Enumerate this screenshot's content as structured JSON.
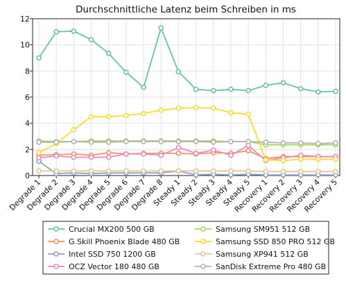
{
  "chart_data": {
    "type": "line",
    "title": "Durchschnittliche Latenz beim Schreiben in ms",
    "xlabel": "",
    "ylabel": "",
    "ylim": [
      0,
      12
    ],
    "yticks": [
      0,
      2,
      4,
      6,
      8,
      10,
      12
    ],
    "grid": true,
    "legend_position": "bottom",
    "categories": [
      "Degrade 1",
      "Degrade 2",
      "Degrade 3",
      "Degrade 4",
      "Degrade 5",
      "Degrade 6",
      "Degrade 7",
      "Degrade 8",
      "Steady 1",
      "Steady 2",
      "Steady 3",
      "Steady 4",
      "Steady 5",
      "Recovery 1",
      "Recovery 2",
      "Recovery 3",
      "Recovery 4",
      "Recovery 5"
    ],
    "series": [
      {
        "name": "Crucial MX200 500 GB",
        "color": "#66c2a5",
        "values": [
          9.0,
          11.0,
          11.05,
          10.4,
          9.35,
          7.9,
          6.75,
          11.3,
          7.95,
          6.6,
          6.5,
          6.6,
          6.5,
          6.9,
          7.1,
          6.65,
          6.4,
          6.45
        ]
      },
      {
        "name": "G.Skill Phoenix Blade 480 GB",
        "color": "#fc8d62",
        "values": [
          1.55,
          1.6,
          1.65,
          1.55,
          1.75,
          1.65,
          1.7,
          1.7,
          1.7,
          1.65,
          1.75,
          1.7,
          1.9,
          1.3,
          1.45,
          1.45,
          1.45,
          1.45
        ]
      },
      {
        "name": "Intel SSD 750 1200 GB",
        "color": "#8da0cb",
        "values": [
          1.1,
          0.15,
          0.2,
          0.15,
          0.2,
          0.2,
          0.2,
          0.2,
          0.35,
          0.05,
          0.1,
          0.05,
          0.1,
          0.05,
          0.05,
          0.05,
          0.05,
          0.05
        ]
      },
      {
        "name": "OCZ Vector 180 480 GB",
        "color": "#e78ac3",
        "values": [
          1.35,
          1.5,
          1.4,
          1.4,
          1.4,
          1.65,
          1.65,
          1.55,
          2.15,
          1.7,
          1.95,
          1.55,
          2.3,
          1.15,
          1.35,
          1.55,
          1.45,
          1.45
        ]
      },
      {
        "name": "Samsung SM951 512 GB",
        "color": "#a6d854",
        "values": [
          2.65,
          2.6,
          2.6,
          2.65,
          2.65,
          2.65,
          2.65,
          2.65,
          2.65,
          2.65,
          2.65,
          2.6,
          2.6,
          2.35,
          2.35,
          2.35,
          2.35,
          2.35
        ]
      },
      {
        "name": "Samsung SSD 850 PRO 512 GB",
        "color": "#ffd92f",
        "values": [
          1.75,
          2.45,
          3.5,
          4.5,
          4.5,
          4.6,
          4.75,
          5.0,
          5.15,
          5.2,
          5.15,
          4.8,
          4.7,
          1.2,
          1.15,
          1.25,
          1.25,
          1.25
        ]
      },
      {
        "name": "Samsung XP941 512 GB",
        "color": "#e5c494",
        "values": [
          0.35,
          0.35,
          0.35,
          0.35,
          0.35,
          0.35,
          0.35,
          0.35,
          0.35,
          0.35,
          0.35,
          0.35,
          0.35,
          0.3,
          0.3,
          0.3,
          0.3,
          0.3
        ]
      },
      {
        "name": "SanDisk Extreme Pro 480 GB",
        "color": "#b3b3b3",
        "values": [
          2.55,
          2.55,
          2.6,
          2.55,
          2.55,
          2.6,
          2.6,
          2.6,
          2.6,
          2.6,
          2.55,
          2.6,
          2.6,
          2.55,
          2.5,
          2.5,
          2.45,
          2.5
        ]
      }
    ]
  }
}
